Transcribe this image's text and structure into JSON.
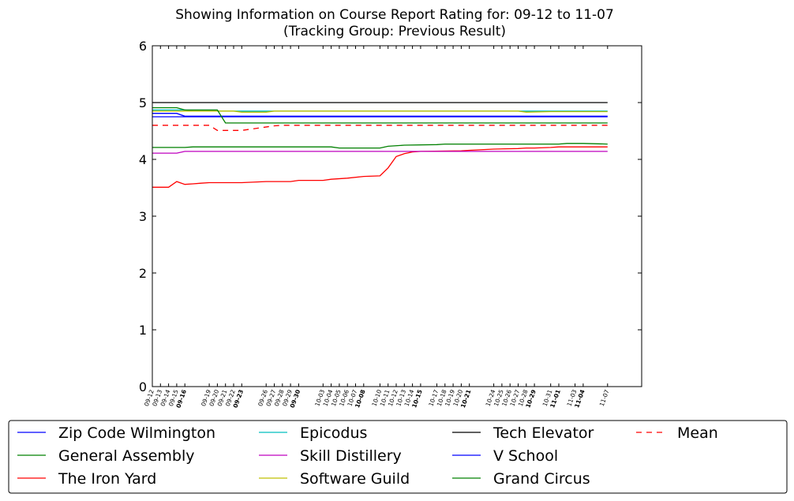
{
  "chart_data": {
    "type": "line",
    "title": "Showing Information on Course Report Rating for: 09-12 to 11-07",
    "subtitle": "(Tracking Group: Previous Result)",
    "xlabel": "",
    "ylabel": "",
    "ylim": [
      0,
      6
    ],
    "yticks": [
      0,
      1,
      2,
      3,
      4,
      5,
      6
    ],
    "grid": false,
    "legend_position": "bottom",
    "x_dates": [
      "09-12",
      "09-13",
      "09-14",
      "09-15",
      "09-16",
      "09-19",
      "09-20",
      "09-21",
      "09-22",
      "09-23",
      "09-26",
      "09-27",
      "09-28",
      "09-29",
      "09-30",
      "10-03",
      "10-04",
      "10-05",
      "10-06",
      "10-07",
      "10-08",
      "10-10",
      "10-11",
      "10-12",
      "10-13",
      "10-14",
      "10-15",
      "10-17",
      "10-18",
      "10-19",
      "10-20",
      "10-21",
      "10-24",
      "10-25",
      "10-26",
      "10-27",
      "10-28",
      "10-29",
      "10-31",
      "11-01",
      "11-03",
      "11-04",
      "11-07"
    ],
    "x_tick_labels": [
      "09-12",
      "09-13",
      "09-14",
      "09-15",
      "09-16",
      "09-19",
      "09-20",
      "09-21",
      "09-22",
      "09-23",
      "09-26",
      "09-27",
      "09-28",
      "09-29",
      "09-30",
      "10-03",
      "10-04",
      "10-05",
      "10-06",
      "10-07",
      "10-08",
      "10-10",
      "10-11",
      "10-12",
      "10-13",
      "10-14",
      "10-15",
      "10-17",
      "10-18",
      "10-19",
      "10-20",
      "10-21",
      "10-24",
      "10-25",
      "10-26",
      "10-27",
      "10-28",
      "10-29",
      "10-31",
      "11-01",
      "11-03",
      "11-04",
      "11-07"
    ],
    "x_tick_bold": [
      "09-16",
      "09-23",
      "09-30",
      "10-08",
      "10-15",
      "10-21",
      "10-29",
      "11-01",
      "11-04"
    ],
    "series": [
      {
        "name": "Zip Code Wilmington",
        "color": "#0000ff",
        "dash": "solid",
        "points": [
          [
            "09-12",
            4.81
          ],
          [
            "09-15",
            4.81
          ],
          [
            "09-16",
            4.76
          ],
          [
            "11-07",
            4.76
          ]
        ]
      },
      {
        "name": "General Assembly",
        "color": "#008000",
        "dash": "solid",
        "points": [
          [
            "09-12",
            4.21
          ],
          [
            "09-16",
            4.21
          ],
          [
            "09-17",
            4.22
          ],
          [
            "10-04",
            4.22
          ],
          [
            "10-05",
            4.2
          ],
          [
            "10-10",
            4.2
          ],
          [
            "10-11",
            4.23
          ],
          [
            "10-13",
            4.25
          ],
          [
            "10-17",
            4.26
          ],
          [
            "10-18",
            4.27
          ],
          [
            "11-01",
            4.27
          ],
          [
            "11-02",
            4.28
          ],
          [
            "11-04",
            4.28
          ],
          [
            "11-07",
            4.27
          ]
        ]
      },
      {
        "name": "The Iron Yard",
        "color": "#ff0000",
        "dash": "solid",
        "points": [
          [
            "09-12",
            3.51
          ],
          [
            "09-14",
            3.51
          ],
          [
            "09-15",
            3.61
          ],
          [
            "09-16",
            3.56
          ],
          [
            "09-17",
            3.57
          ],
          [
            "09-18",
            3.58
          ],
          [
            "09-19",
            3.59
          ],
          [
            "09-23",
            3.59
          ],
          [
            "09-26",
            3.61
          ],
          [
            "09-29",
            3.61
          ],
          [
            "09-30",
            3.63
          ],
          [
            "10-03",
            3.63
          ],
          [
            "10-04",
            3.65
          ],
          [
            "10-06",
            3.67
          ],
          [
            "10-08",
            3.7
          ],
          [
            "10-10",
            3.71
          ],
          [
            "10-11",
            3.85
          ],
          [
            "10-12",
            4.05
          ],
          [
            "10-13",
            4.1
          ],
          [
            "10-14",
            4.13
          ],
          [
            "10-15",
            4.14
          ],
          [
            "10-20",
            4.15
          ],
          [
            "10-21",
            4.16
          ],
          [
            "10-24",
            4.18
          ],
          [
            "10-27",
            4.19
          ],
          [
            "10-28",
            4.2
          ],
          [
            "10-29",
            4.2
          ],
          [
            "10-31",
            4.21
          ],
          [
            "11-01",
            4.22
          ],
          [
            "11-07",
            4.22
          ]
        ]
      },
      {
        "name": "Epicodus",
        "color": "#00bfbf",
        "dash": "solid",
        "points": [
          [
            "09-12",
            4.87
          ],
          [
            "09-16",
            4.87
          ],
          [
            "09-17",
            4.85
          ],
          [
            "09-26",
            4.85
          ],
          [
            "11-07",
            4.85
          ]
        ]
      },
      {
        "name": "Skill Distillery",
        "color": "#bf00bf",
        "dash": "solid",
        "points": [
          [
            "09-12",
            4.11
          ],
          [
            "09-15",
            4.11
          ],
          [
            "09-16",
            4.14
          ],
          [
            "11-07",
            4.14
          ]
        ]
      },
      {
        "name": "Software Guild",
        "color": "#bfbf00",
        "dash": "solid",
        "points": [
          [
            "09-12",
            4.85
          ],
          [
            "09-22",
            4.85
          ],
          [
            "09-23",
            4.83
          ],
          [
            "09-26",
            4.83
          ],
          [
            "09-27",
            4.85
          ],
          [
            "10-27",
            4.85
          ],
          [
            "10-28",
            4.83
          ],
          [
            "10-31",
            4.84
          ],
          [
            "11-07",
            4.84
          ]
        ]
      },
      {
        "name": "Tech Elevator",
        "color": "#000000",
        "dash": "solid",
        "points": [
          [
            "09-12",
            5.0
          ],
          [
            "11-07",
            5.0
          ]
        ]
      },
      {
        "name": "V School",
        "color": "#0000ff",
        "dash": "solid",
        "points": [
          [
            "09-12",
            4.75
          ],
          [
            "11-07",
            4.75
          ]
        ]
      },
      {
        "name": "Grand Circus",
        "color": "#008000",
        "dash": "solid",
        "points": [
          [
            "09-12",
            4.91
          ],
          [
            "09-15",
            4.91
          ],
          [
            "09-16",
            4.87
          ],
          [
            "09-20",
            4.87
          ],
          [
            "09-21",
            4.64
          ],
          [
            "11-07",
            4.64
          ]
        ]
      },
      {
        "name": "Mean",
        "color": "#ff0000",
        "dash": "dashed",
        "points": [
          [
            "09-12",
            4.6
          ],
          [
            "09-19",
            4.6
          ],
          [
            "09-20",
            4.51
          ],
          [
            "09-23",
            4.51
          ],
          [
            "09-27",
            4.59
          ],
          [
            "09-28",
            4.6
          ],
          [
            "11-07",
            4.6
          ]
        ]
      }
    ]
  }
}
